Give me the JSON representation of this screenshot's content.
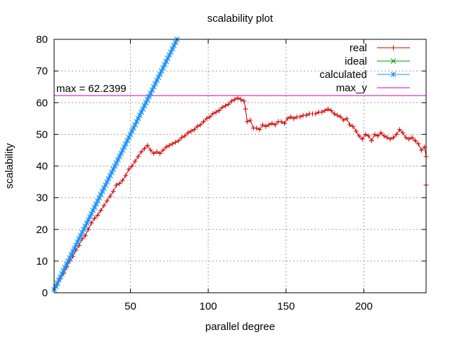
{
  "chart_data": {
    "type": "line",
    "title": "scalability plot",
    "xlabel": "parallel degree",
    "ylabel": "scalability",
    "xlim": [
      1,
      240
    ],
    "ylim": [
      0,
      80
    ],
    "xticks": [
      50,
      100,
      150,
      200
    ],
    "yticks": [
      0,
      10,
      20,
      30,
      40,
      50,
      60,
      70,
      80
    ],
    "grid": true,
    "legend_position": "top-right",
    "annotation": "max = 62.2399",
    "series": [
      {
        "name": "real",
        "color": "#cc0000",
        "marker": "plus",
        "points": [
          [
            1,
            1
          ],
          [
            3,
            2.5
          ],
          [
            5,
            4.5
          ],
          [
            7,
            6
          ],
          [
            9,
            8
          ],
          [
            11,
            10
          ],
          [
            13,
            11.5
          ],
          [
            15,
            13.5
          ],
          [
            17,
            15
          ],
          [
            19,
            17
          ],
          [
            21,
            18
          ],
          [
            23,
            20
          ],
          [
            25,
            22
          ],
          [
            27,
            23.5
          ],
          [
            29,
            24.5
          ],
          [
            31,
            26
          ],
          [
            33,
            27.5
          ],
          [
            35,
            29
          ],
          [
            37,
            30.5
          ],
          [
            39,
            32
          ],
          [
            41,
            34
          ],
          [
            43,
            34.5
          ],
          [
            45,
            35.5
          ],
          [
            47,
            37
          ],
          [
            49,
            39
          ],
          [
            51,
            40
          ],
          [
            53,
            41.5
          ],
          [
            55,
            43
          ],
          [
            57,
            44.5
          ],
          [
            59,
            45.5
          ],
          [
            61,
            46.5
          ],
          [
            63,
            45
          ],
          [
            65,
            44
          ],
          [
            67,
            44.5
          ],
          [
            69,
            44
          ],
          [
            71,
            45
          ],
          [
            73,
            46
          ],
          [
            75,
            46.5
          ],
          [
            77,
            47
          ],
          [
            79,
            47.5
          ],
          [
            81,
            48
          ],
          [
            83,
            49
          ],
          [
            85,
            49.5
          ],
          [
            87,
            50.5
          ],
          [
            89,
            51
          ],
          [
            91,
            51.5
          ],
          [
            93,
            52.5
          ],
          [
            95,
            53
          ],
          [
            97,
            54
          ],
          [
            99,
            55
          ],
          [
            101,
            55.5
          ],
          [
            103,
            56.5
          ],
          [
            105,
            57
          ],
          [
            107,
            57.5
          ],
          [
            109,
            58.5
          ],
          [
            111,
            59
          ],
          [
            113,
            59.5
          ],
          [
            115,
            60.5
          ],
          [
            117,
            61
          ],
          [
            119,
            61.5
          ],
          [
            121,
            61
          ],
          [
            123,
            60.5
          ],
          [
            124,
            58
          ],
          [
            125,
            54
          ],
          [
            127,
            54.5
          ],
          [
            129,
            52
          ],
          [
            131,
            52
          ],
          [
            133,
            51.5
          ],
          [
            135,
            53
          ],
          [
            137,
            52.5
          ],
          [
            139,
            53
          ],
          [
            141,
            53.5
          ],
          [
            143,
            53
          ],
          [
            145,
            54
          ],
          [
            147,
            54
          ],
          [
            149,
            53.5
          ],
          [
            151,
            55
          ],
          [
            153,
            55.5
          ],
          [
            155,
            55
          ],
          [
            157,
            55.5
          ],
          [
            159,
            55.5
          ],
          [
            161,
            56
          ],
          [
            163,
            56
          ],
          [
            165,
            56.5
          ],
          [
            167,
            56.5
          ],
          [
            169,
            56.5
          ],
          [
            171,
            57
          ],
          [
            173,
            57
          ],
          [
            175,
            57.5
          ],
          [
            177,
            58
          ],
          [
            179,
            57.5
          ],
          [
            181,
            56.5
          ],
          [
            183,
            56
          ],
          [
            185,
            55.5
          ],
          [
            187,
            54.5
          ],
          [
            189,
            55
          ],
          [
            191,
            53
          ],
          [
            193,
            52.5
          ],
          [
            195,
            51
          ],
          [
            197,
            49.5
          ],
          [
            199,
            48.5
          ],
          [
            201,
            50
          ],
          [
            203,
            49.5
          ],
          [
            205,
            48
          ],
          [
            207,
            50
          ],
          [
            209,
            49.5
          ],
          [
            211,
            50.5
          ],
          [
            213,
            49.5
          ],
          [
            215,
            49
          ],
          [
            217,
            48.5
          ],
          [
            219,
            49
          ],
          [
            221,
            50
          ],
          [
            223,
            51.5
          ],
          [
            225,
            50.5
          ],
          [
            227,
            49
          ],
          [
            229,
            48.5
          ],
          [
            231,
            49
          ],
          [
            233,
            48
          ],
          [
            235,
            47
          ],
          [
            237,
            45
          ],
          [
            239,
            46
          ],
          [
            240,
            43
          ],
          [
            240,
            34
          ]
        ]
      },
      {
        "name": "ideal",
        "color": "#009900",
        "marker": "cross",
        "points": [
          [
            1,
            1
          ],
          [
            80,
            80
          ]
        ]
      },
      {
        "name": "calculated",
        "color": "#1e90ff",
        "marker": "star",
        "points": [
          [
            1,
            1
          ],
          [
            80,
            80
          ]
        ]
      },
      {
        "name": "max_y",
        "color": "#cc00cc",
        "marker": "none",
        "points": [
          [
            1,
            62.2399
          ],
          [
            240,
            62.2399
          ]
        ]
      }
    ]
  }
}
